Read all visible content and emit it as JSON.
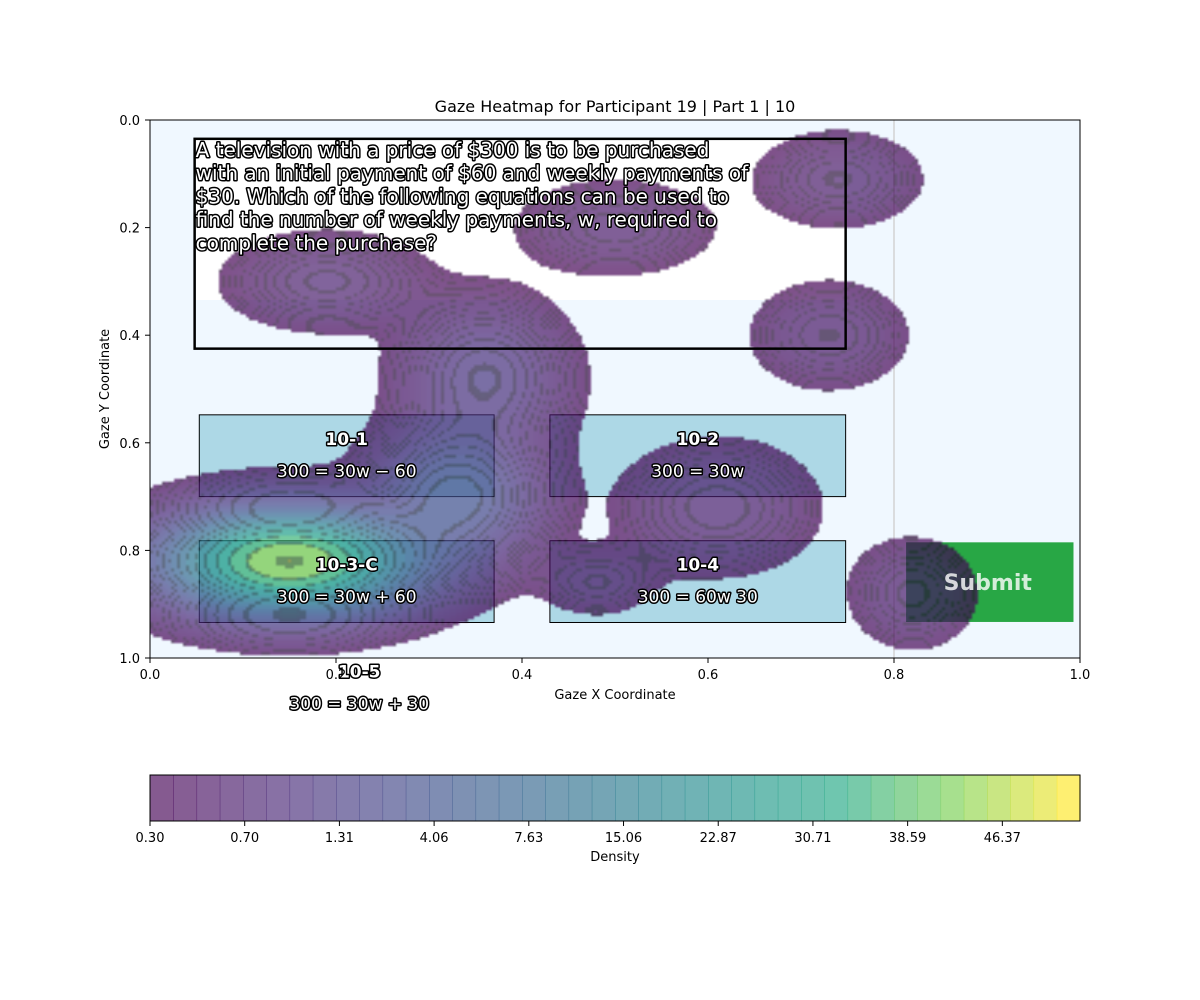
{
  "chart_data": {
    "type": "heatmap",
    "title": "Gaze Heatmap for Participant 19 | Part 1 | 10",
    "xlabel": "Gaze X Coordinate",
    "ylabel": "Gaze Y Coordinate",
    "xlim": [
      0.0,
      1.0
    ],
    "ylim": [
      1.0,
      0.0
    ],
    "x_ticks": [
      "0.0",
      "0.2",
      "0.4",
      "0.6",
      "0.8",
      "1.0"
    ],
    "y_ticks": [
      "0.0",
      "0.2",
      "0.4",
      "0.6",
      "0.8",
      "1.0"
    ],
    "grid": false,
    "colorbar": {
      "label": "Density",
      "ticks": [
        "0.30",
        "0.70",
        "1.31",
        "4.06",
        "7.63",
        "15.06",
        "22.87",
        "30.71",
        "38.59",
        "46.37"
      ],
      "colormap": "viridis"
    },
    "question": {
      "lines": [
        "A television with a price of $300 is to be purchased",
        "with an initial payment of $60 and weekly payments of",
        "$30. Which of the following equations can be used to",
        "find the number of weekly payments, w, required to",
        "complete the purchase?"
      ],
      "box": [
        0.048,
        0.035,
        0.748,
        0.425
      ]
    },
    "options": [
      {
        "id": "10-1",
        "text": "300 = 30w − 60",
        "box": [
          0.053,
          0.548,
          0.37,
          0.7
        ]
      },
      {
        "id": "10-2",
        "text": "300 = 30w",
        "box": [
          0.43,
          0.548,
          0.748,
          0.7
        ]
      },
      {
        "id": "10-3-C",
        "text": "300 = 30w + 60",
        "box": [
          0.053,
          0.782,
          0.37,
          0.934
        ]
      },
      {
        "id": "10-4",
        "text": "300 = 60w 30",
        "box": [
          0.43,
          0.782,
          0.748,
          0.934
        ]
      },
      {
        "id": "10-5",
        "text": "300 = 30w + 30",
        "box": null,
        "label_at": [
          0.225,
          1.025
        ]
      }
    ],
    "submit": {
      "label": "Submit",
      "box": [
        0.813,
        0.785,
        0.993,
        0.933
      ],
      "color": "#28a745"
    },
    "vertical_line_x": 0.8,
    "density_clusters": [
      {
        "cx": 0.15,
        "cy": 0.82,
        "sx": 0.075,
        "sy": 0.055,
        "peak": 50
      },
      {
        "cx": 0.33,
        "cy": 0.7,
        "sx": 0.05,
        "sy": 0.07,
        "peak": 9
      },
      {
        "cx": 0.36,
        "cy": 0.48,
        "sx": 0.05,
        "sy": 0.08,
        "peak": 4
      },
      {
        "cx": 0.19,
        "cy": 0.3,
        "sx": 0.06,
        "sy": 0.05,
        "peak": 2
      },
      {
        "cx": 0.5,
        "cy": 0.2,
        "sx": 0.06,
        "sy": 0.05,
        "peak": 1.5
      },
      {
        "cx": 0.74,
        "cy": 0.11,
        "sx": 0.05,
        "sy": 0.05,
        "peak": 1.6
      },
      {
        "cx": 0.73,
        "cy": 0.4,
        "sx": 0.05,
        "sy": 0.06,
        "peak": 1.3
      },
      {
        "cx": 0.61,
        "cy": 0.72,
        "sx": 0.06,
        "sy": 0.07,
        "peak": 1.8
      },
      {
        "cx": 0.48,
        "cy": 0.86,
        "sx": 0.04,
        "sy": 0.04,
        "peak": 0.9
      },
      {
        "cx": 0.82,
        "cy": 0.88,
        "sx": 0.04,
        "sy": 0.06,
        "peak": 1.4
      }
    ],
    "colors": {
      "background": "#f0f8ff",
      "option_fill": "#add8e6",
      "cmap_low": "#440154",
      "cmap_high": "#fde725"
    }
  }
}
